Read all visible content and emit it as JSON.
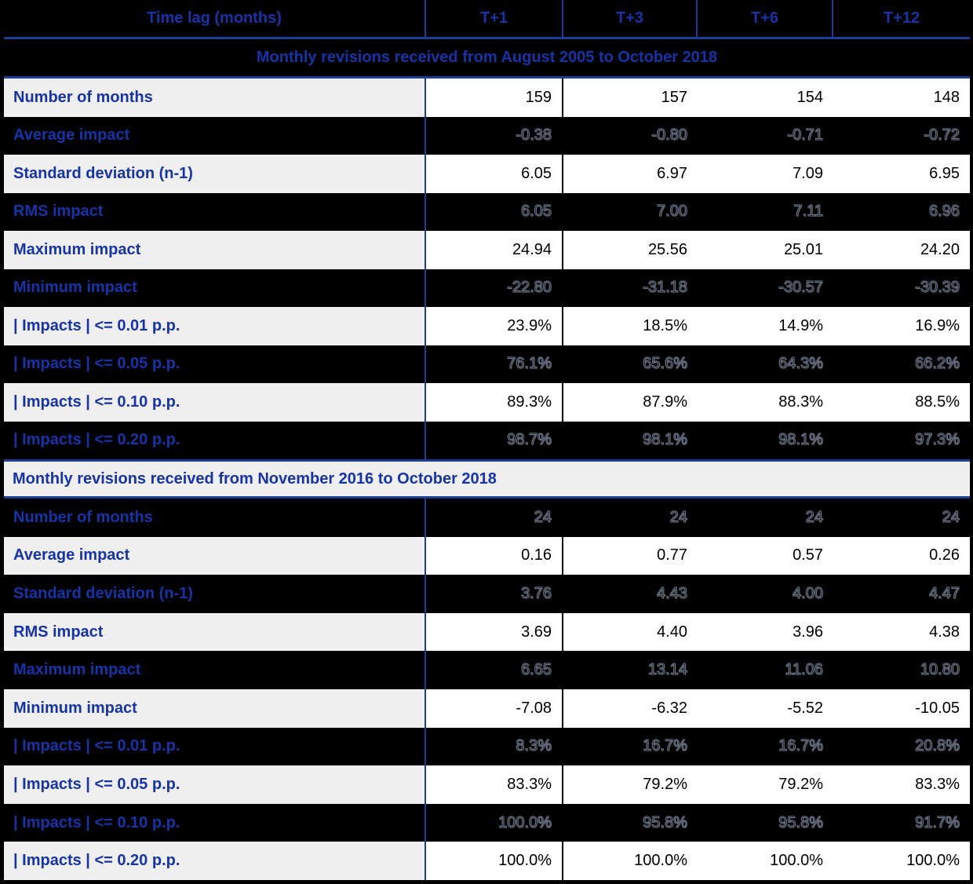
{
  "header": {
    "time_lag_label": "Time lag (months)",
    "columns": [
      "T+1",
      "T+3",
      "T+6",
      "T+12"
    ]
  },
  "sections": [
    {
      "title": "Monthly revisions received from August 2005 to October 2018",
      "title_theme": "dark",
      "title_align": "center",
      "rows": [
        {
          "label": "Number of months",
          "theme": "light",
          "values": [
            "159",
            "157",
            "154",
            "148"
          ]
        },
        {
          "label": "Average impact",
          "theme": "dark",
          "values": [
            "-0.38",
            "-0.80",
            "-0.71",
            "-0.72"
          ]
        },
        {
          "label": "Standard deviation (n-1)",
          "theme": "light",
          "values": [
            "6.05",
            "6.97",
            "7.09",
            "6.95"
          ]
        },
        {
          "label": "RMS impact",
          "theme": "dark",
          "values": [
            "6.05",
            "7.00",
            "7.11",
            "6.96"
          ]
        },
        {
          "label": "Maximum impact",
          "theme": "light",
          "values": [
            "24.94",
            "25.56",
            "25.01",
            "24.20"
          ]
        },
        {
          "label": "Minimum impact",
          "theme": "dark",
          "values": [
            "-22.80",
            "-31.18",
            "-30.57",
            "-30.39"
          ]
        },
        {
          "label": "| Impacts | <= 0.01 p.p.",
          "theme": "light",
          "values": [
            "23.9%",
            "18.5%",
            "14.9%",
            "16.9%"
          ]
        },
        {
          "label": "| Impacts | <= 0.05 p.p.",
          "theme": "dark",
          "values": [
            "76.1%",
            "65.6%",
            "64.3%",
            "66.2%"
          ]
        },
        {
          "label": "| Impacts | <= 0.10 p.p.",
          "theme": "light",
          "values": [
            "89.3%",
            "87.9%",
            "88.3%",
            "88.5%"
          ]
        },
        {
          "label": "| Impacts | <= 0.20 p.p.",
          "theme": "dark",
          "values": [
            "98.7%",
            "98.1%",
            "98.1%",
            "97.3%"
          ]
        }
      ]
    },
    {
      "title": "Monthly revisions received from November 2016 to October 2018",
      "title_theme": "light",
      "title_align": "left",
      "rows": [
        {
          "label": "Number of months",
          "theme": "dark",
          "values": [
            "24",
            "24",
            "24",
            "24"
          ]
        },
        {
          "label": "Average impact",
          "theme": "light",
          "values": [
            "0.16",
            "0.77",
            "0.57",
            "0.26"
          ]
        },
        {
          "label": "Standard deviation (n-1)",
          "theme": "dark",
          "values": [
            "3.76",
            "4.43",
            "4.00",
            "4.47"
          ]
        },
        {
          "label": "RMS impact",
          "theme": "light",
          "values": [
            "3.69",
            "4.40",
            "3.96",
            "4.38"
          ]
        },
        {
          "label": "Maximum impact",
          "theme": "dark",
          "values": [
            "6.65",
            "13.14",
            "11.06",
            "10.80"
          ]
        },
        {
          "label": "Minimum impact",
          "theme": "light",
          "values": [
            "-7.08",
            "-6.32",
            "-5.52",
            "-10.05"
          ]
        },
        {
          "label": "| Impacts | <= 0.01 p.p.",
          "theme": "dark",
          "values": [
            "8.3%",
            "16.7%",
            "16.7%",
            "20.8%"
          ]
        },
        {
          "label": "| Impacts | <= 0.05 p.p.",
          "theme": "light",
          "values": [
            "83.3%",
            "79.2%",
            "79.2%",
            "83.3%"
          ]
        },
        {
          "label": "| Impacts | <= 0.10 p.p.",
          "theme": "dark",
          "values": [
            "100.0%",
            "95.8%",
            "95.8%",
            "91.7%"
          ]
        },
        {
          "label": "| Impacts | <= 0.20 p.p.",
          "theme": "light",
          "values": [
            "100.0%",
            "100.0%",
            "100.0%",
            "100.0%"
          ]
        }
      ]
    }
  ],
  "colors": {
    "accent_blue_text": "#1634A8",
    "grid_blue": "#1C3D96",
    "light_bg": "#EFEFEF",
    "cell_white": "#FFFFFF",
    "dark_bg": "#000000"
  }
}
